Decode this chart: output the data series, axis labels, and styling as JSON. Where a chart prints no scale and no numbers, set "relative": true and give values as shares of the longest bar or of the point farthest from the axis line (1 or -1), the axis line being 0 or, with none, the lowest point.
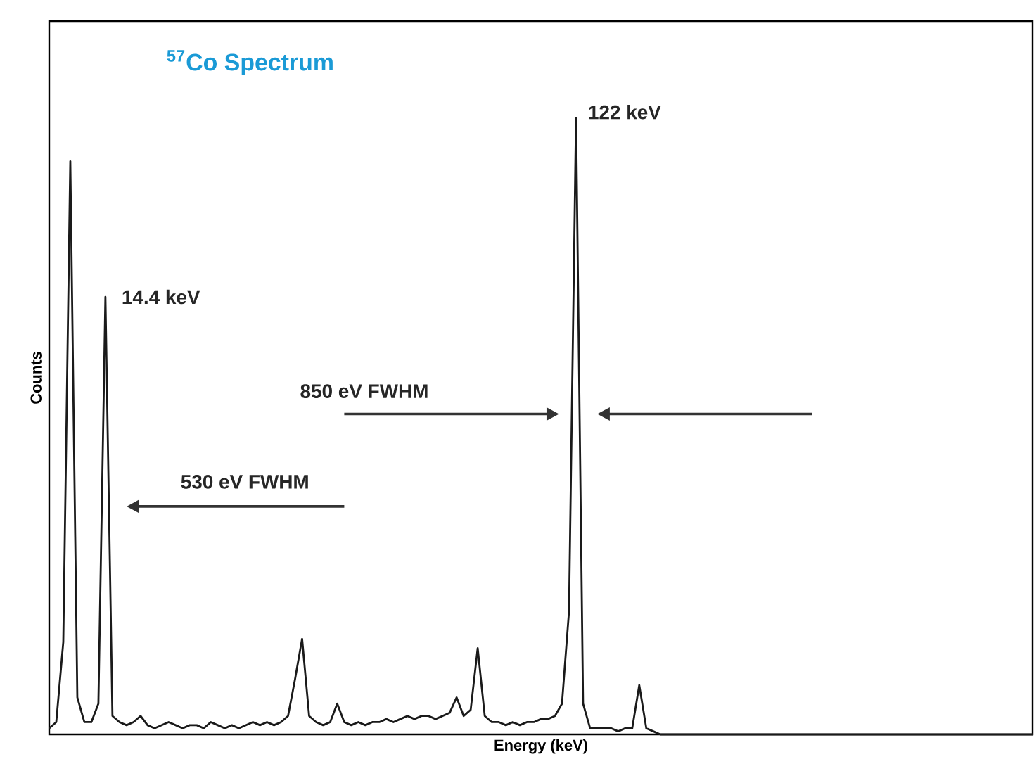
{
  "chart_data": {
    "type": "line",
    "relative": true,
    "tick_labels": false,
    "color": "#1a1a1a",
    "title": "$^{57}$Co Spectrum",
    "xlabel": "Energy (keV)",
    "ylabel": "Counts",
    "annotations": [
      "122 keV",
      "14.4 keV",
      "850 eV FWHM",
      "530 eV FWHM"
    ],
    "categories": [
      null,
      null,
      null,
      null,
      null,
      null,
      null,
      null,
      null,
      null,
      null,
      null,
      null,
      null,
      null,
      null,
      null,
      null,
      null,
      null,
      null,
      null,
      null,
      null,
      null,
      null,
      null,
      null,
      null,
      null,
      null,
      null,
      null,
      null,
      null,
      null,
      null,
      null,
      null,
      null,
      null,
      null,
      null,
      null,
      null,
      null,
      null,
      null,
      null,
      null,
      null,
      null,
      null,
      null,
      null,
      null,
      null,
      null,
      null,
      null,
      null,
      null,
      null,
      null,
      null,
      null,
      null,
      null,
      null,
      null,
      null,
      null,
      null,
      null,
      null,
      null,
      null,
      null,
      null,
      null,
      null,
      null,
      null,
      null,
      null,
      null,
      null,
      null,
      null,
      null,
      null,
      null,
      null,
      null,
      null,
      null,
      null,
      null,
      null,
      null,
      null,
      null,
      null,
      null,
      null,
      null,
      null,
      null,
      null,
      null,
      null,
      null,
      null,
      null,
      null,
      null,
      null,
      null,
      null,
      null,
      null,
      null,
      null,
      null,
      null,
      null,
      null,
      null,
      null,
      null,
      null,
      null,
      null,
      null,
      null,
      null,
      null,
      null,
      null,
      null,
      null
    ],
    "values": [
      0.01,
      0.02,
      0.15,
      0.93,
      0.06,
      0.02,
      0.02,
      0.05,
      0.71,
      0.03,
      0.02,
      0.015,
      0.02,
      0.03,
      0.015,
      0.01,
      0.015,
      0.02,
      0.015,
      0.01,
      0.015,
      0.015,
      0.01,
      0.02,
      0.015,
      0.01,
      0.015,
      0.01,
      0.015,
      0.02,
      0.015,
      0.02,
      0.015,
      0.02,
      0.03,
      0.09,
      0.155,
      0.03,
      0.02,
      0.015,
      0.02,
      0.05,
      0.02,
      0.015,
      0.02,
      0.015,
      0.02,
      0.02,
      0.025,
      0.02,
      0.025,
      0.03,
      0.025,
      0.03,
      0.03,
      0.025,
      0.03,
      0.035,
      0.06,
      0.03,
      0.04,
      0.14,
      0.03,
      0.02,
      0.02,
      0.015,
      0.02,
      0.015,
      0.02,
      0.02,
      0.025,
      0.025,
      0.03,
      0.05,
      0.2,
      1.0,
      0.05,
      0.01,
      0.01,
      0.01,
      0.01,
      0.005,
      0.01,
      0.01,
      0.08,
      0.01,
      0.005,
      0,
      0,
      0,
      0,
      0,
      0,
      0,
      0,
      0,
      0,
      0,
      0,
      0,
      0,
      0,
      0,
      0,
      0,
      0,
      0,
      0,
      0,
      0,
      0,
      0,
      0,
      0,
      0,
      0,
      0,
      0,
      0,
      0,
      0,
      0,
      0,
      0,
      0,
      0,
      0,
      0,
      0,
      0,
      0,
      0,
      0,
      0,
      0,
      0,
      0,
      0,
      0,
      0,
      0
    ]
  }
}
